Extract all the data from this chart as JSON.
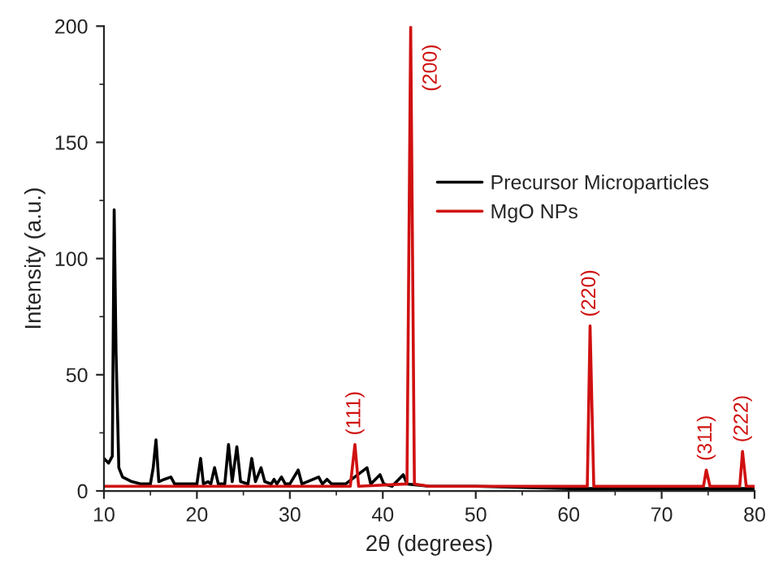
{
  "chart_data": {
    "type": "line",
    "xlabel": "2θ (degrees)",
    "ylabel": "Intensity (a.u.)",
    "xlim": [
      10,
      80
    ],
    "ylim": [
      0,
      200
    ],
    "xticks": [
      10,
      20,
      30,
      40,
      50,
      60,
      70,
      80
    ],
    "yticks": [
      0,
      50,
      100,
      150,
      200
    ],
    "grid": false,
    "legend": "top right",
    "marker": "none",
    "line_style": "solid",
    "series": [
      {
        "name": "Precursor Microparticles",
        "color": "#000000",
        "x": [
          10,
          10.5,
          10.9,
          11.1,
          11.3,
          11.6,
          12,
          13,
          14,
          15,
          15.3,
          15.6,
          15.9,
          16.5,
          17.2,
          17.6,
          18.5,
          20,
          20.4,
          20.7,
          21.2,
          21.5,
          21.9,
          22.3,
          23,
          23.4,
          23.8,
          24.3,
          24.7,
          25.5,
          25.9,
          26.3,
          26.9,
          27.3,
          28,
          28.3,
          28.6,
          29.1,
          29.5,
          30,
          30.9,
          31.3,
          33.1,
          33.5,
          34,
          34.5,
          36,
          38.3,
          38.7,
          39.7,
          40.1,
          41,
          42.2,
          42.6,
          45,
          50,
          60,
          70,
          80
        ],
        "values": [
          14,
          12,
          15,
          121,
          60,
          10,
          6,
          4,
          3,
          3,
          10,
          22,
          4,
          5,
          6,
          3,
          3,
          3,
          14,
          3,
          4,
          3,
          10,
          3,
          3,
          20,
          4,
          19,
          4,
          3,
          14,
          4,
          10,
          4,
          3,
          5,
          3,
          6,
          3,
          3,
          9,
          3,
          6,
          3,
          5,
          3,
          3,
          10,
          3,
          7,
          3,
          2,
          7,
          3,
          2,
          2,
          1,
          1,
          1
        ]
      },
      {
        "name": "MgO NPs",
        "color": "#d01010",
        "x": [
          10,
          36.5,
          37,
          37.4,
          42.6,
          43,
          43.4,
          45,
          62,
          62.3,
          62.7,
          74.5,
          74.8,
          75.2,
          78.4,
          78.7,
          79.1,
          80
        ],
        "values": [
          2,
          2,
          20,
          2,
          3,
          200,
          3,
          2,
          2,
          71,
          2,
          2,
          9,
          2,
          2,
          17,
          2,
          2
        ]
      }
    ],
    "annotations": [
      {
        "text": "(111)",
        "x": 37,
        "y": 20
      },
      {
        "text": "(200)",
        "x": 43,
        "y": 200
      },
      {
        "text": "(220)",
        "x": 62.3,
        "y": 71
      },
      {
        "text": "(311)",
        "x": 74.8,
        "y": 9
      },
      {
        "text": "(222)",
        "x": 78.7,
        "y": 17
      }
    ]
  }
}
